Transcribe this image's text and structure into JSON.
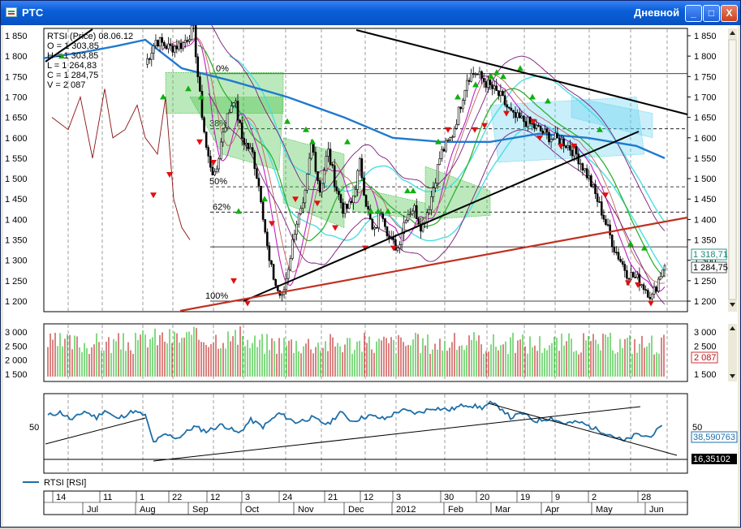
{
  "window": {
    "title": "РТС",
    "period": "Дневной",
    "btn_min": "_",
    "btn_max": "□",
    "btn_close": "X"
  },
  "info_box": {
    "line1": "RTSI (Price) 08.06.12",
    "line2": "O = 1 303,85",
    "line3": "H = 1 303,85",
    "line4": "L = 1 264,83",
    "line5": "C = 1 284,75",
    "line6": "V = 2 087"
  },
  "price_axis": [
    "1 850",
    "1 800",
    "1 750",
    "1 700",
    "1 650",
    "1 600",
    "1 550",
    "1 500",
    "1 450",
    "1 400",
    "1 350",
    "1 300",
    "1 250",
    "1 200"
  ],
  "price_tags": {
    "level": "1 318,71",
    "close": "1 284,75"
  },
  "fib_labels": [
    "0%",
    "38%",
    "50%",
    "62%",
    "100%"
  ],
  "volume_axis": [
    "3 000",
    "2 500",
    "2 000",
    "1 500"
  ],
  "volume_tag": "2 087",
  "rsi_axis": [
    "50"
  ],
  "rsi_tags": {
    "value": "38,590763",
    "level": "16,35102"
  },
  "legend": {
    "label": "RTSI [RSI]",
    "color": "#1f6fa8"
  },
  "date_days": [
    "14",
    "11",
    "1",
    "22",
    "12",
    "3",
    "24",
    "21",
    "12",
    "3",
    "30",
    "20",
    "19",
    "9",
    "2",
    "28"
  ],
  "date_months": [
    "Jul",
    "Aug",
    "Sep",
    "Oct",
    "Nov",
    "Dec",
    "2012",
    "Feb",
    "Mar",
    "Apr",
    "May",
    "Jun"
  ],
  "colors": {
    "up": "#30c030",
    "down": "#e01010",
    "ma_blue": "#1f7ad0",
    "trend_red": "#c03020",
    "rsi": "#1f6fa8"
  }
}
